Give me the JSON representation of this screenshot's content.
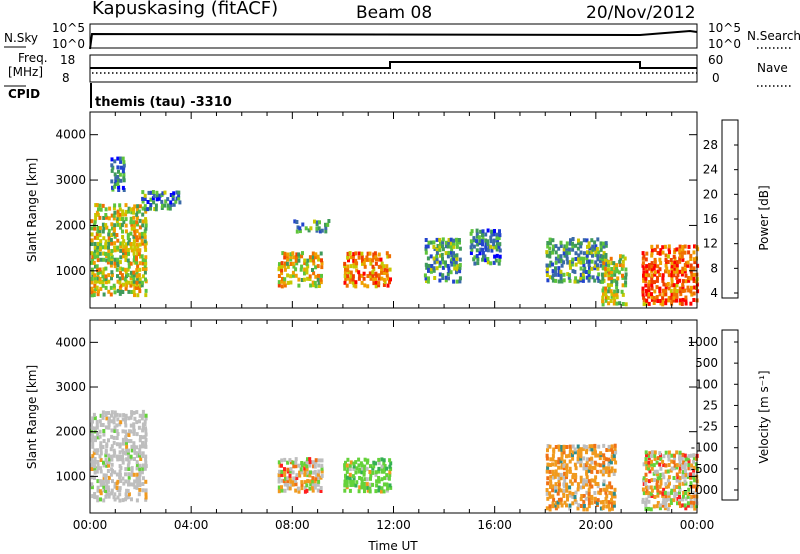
{
  "header": {
    "station": "Kapuskasing (fitACF)",
    "beam": "Beam 08",
    "date": "20/Nov/2012"
  },
  "top_panels": {
    "nsky_label": "N.Sky",
    "nsky_ticks": [
      "10^5",
      "10^0"
    ],
    "nsearch_label": "N.Search",
    "nsearch_ticks": [
      "10^5",
      "10^0"
    ],
    "freq_label_1": "Freq.",
    "freq_label_2": "[MHz]",
    "freq_ticks": [
      "18",
      "8"
    ],
    "nave_label": "Nave",
    "nave_ticks": [
      "60",
      "0"
    ],
    "cpid_label": "CPID",
    "cpid_text": "themis (tau) -3310"
  },
  "chart_data": [
    {
      "type": "heatmap",
      "name": "power",
      "ylabel": "Slant Range [km]",
      "yticks": [
        "4000",
        "3000",
        "2000",
        "1000"
      ],
      "ylim": [
        180,
        4500
      ],
      "xlim": [
        0,
        24
      ],
      "colorbar_label": "Power [dB]",
      "colorbar_ticks": [
        "28",
        "24",
        "20",
        "16",
        "12",
        "8",
        "4"
      ],
      "colorbar_colors": [
        "#0000ff",
        "#2244cc",
        "#3a6aa8",
        "#3f9a5a",
        "#5ec43a",
        "#c8c800",
        "#f0a000",
        "#f07000",
        "#f04000",
        "#ff0000"
      ],
      "regions": [
        {
          "t": [
            0.0,
            2.2
          ],
          "r": [
            500,
            2500
          ],
          "level": 0.55
        },
        {
          "t": [
            2.0,
            3.6
          ],
          "r": [
            2400,
            2800
          ],
          "level": 0.3
        },
        {
          "t": [
            0.8,
            1.3
          ],
          "r": [
            2800,
            3600
          ],
          "level": 0.25
        },
        {
          "t": [
            7.4,
            9.2
          ],
          "r": [
            700,
            1500
          ],
          "level": 0.6
        },
        {
          "t": [
            8.0,
            9.4
          ],
          "r": [
            1900,
            2200
          ],
          "level": 0.3
        },
        {
          "t": [
            10.0,
            11.9
          ],
          "r": [
            700,
            1500
          ],
          "level": 0.75
        },
        {
          "t": [
            13.2,
            14.6
          ],
          "r": [
            800,
            1800
          ],
          "level": 0.35
        },
        {
          "t": [
            15.0,
            16.2
          ],
          "r": [
            1200,
            2000
          ],
          "level": 0.3
        },
        {
          "t": [
            18.0,
            20.4
          ],
          "r": [
            800,
            1800
          ],
          "level": 0.35
        },
        {
          "t": [
            20.2,
            21.2
          ],
          "r": [
            300,
            1400
          ],
          "level": 0.55
        },
        {
          "t": [
            21.8,
            24.0
          ],
          "r": [
            300,
            1600
          ],
          "level": 0.8
        }
      ]
    },
    {
      "type": "heatmap",
      "name": "velocity",
      "ylabel": "Slant Range [km]",
      "yticks": [
        "4000",
        "3000",
        "2000",
        "1000"
      ],
      "ylim": [
        180,
        4500
      ],
      "xlim": [
        0,
        24
      ],
      "xticks": [
        "00:00",
        "04:00",
        "08:00",
        "12:00",
        "16:00",
        "20:00",
        "00:00"
      ],
      "xlabel": "Time UT",
      "colorbar_label": "Velocity [m s⁻¹]",
      "colorbar_ticks": [
        "1000",
        "500",
        "100",
        "25",
        "-25",
        "-100",
        "-500",
        "-1000"
      ],
      "colorbar_colors": [
        "#1e46c8",
        "#2e8c8c",
        "#34b052",
        "#64d23a",
        "#bebebe",
        "#f09a1e",
        "#f07014",
        "#ff1e1e"
      ],
      "regions": [
        {
          "t": [
            0.0,
            2.2
          ],
          "r": [
            500,
            2500
          ],
          "kind": "ground"
        },
        {
          "t": [
            7.4,
            9.2
          ],
          "r": [
            700,
            1500
          ],
          "kind": "mixed"
        },
        {
          "t": [
            10.0,
            11.9
          ],
          "r": [
            700,
            1500
          ],
          "kind": "green"
        },
        {
          "t": [
            18.0,
            20.8
          ],
          "r": [
            300,
            1800
          ],
          "kind": "orange"
        },
        {
          "t": [
            21.8,
            24.0
          ],
          "r": [
            300,
            1600
          ],
          "kind": "mixed"
        }
      ]
    }
  ]
}
